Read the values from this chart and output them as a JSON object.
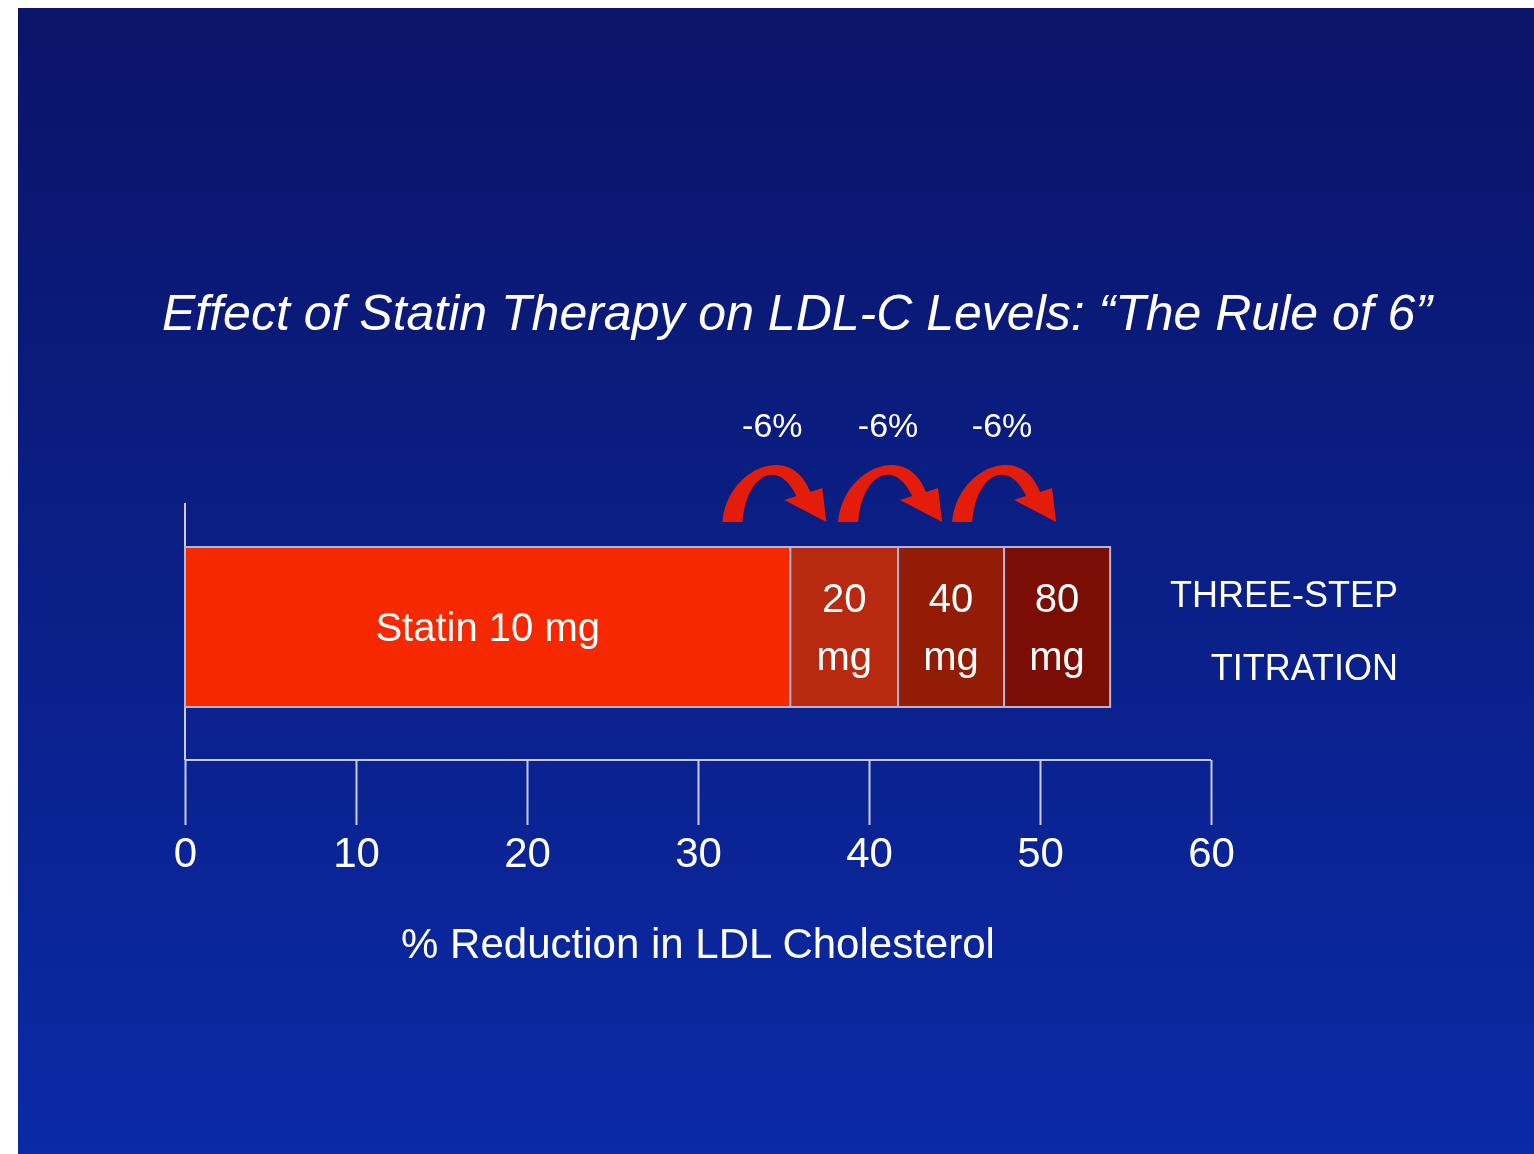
{
  "chart_data": {
    "type": "bar",
    "orientation": "horizontal",
    "stacked": true,
    "title": "Effect of Statin Therapy on LDL-C Levels: “The Rule of 6”",
    "xlabel": "% Reduction in LDL Cholesterol",
    "categories": [
      null
    ],
    "series": [
      {
        "name": "Statin 10 mg",
        "color": "#f52800",
        "values": [
          35.4
        ]
      },
      {
        "name": "20 mg",
        "color": "#b82a10",
        "values": [
          6.3
        ]
      },
      {
        "name": "40 mg",
        "color": "#931c06",
        "values": [
          6.2
        ]
      },
      {
        "name": "80 mg",
        "color": "#7a0d04",
        "values": [
          6.2
        ]
      }
    ],
    "xlim": [
      0,
      60
    ],
    "xticks": [
      0,
      10,
      20,
      30,
      40,
      50,
      60
    ],
    "annotations": [
      "-6%",
      "-6%",
      "-6%",
      "THREE-STEP TITRATION"
    ]
  }
}
